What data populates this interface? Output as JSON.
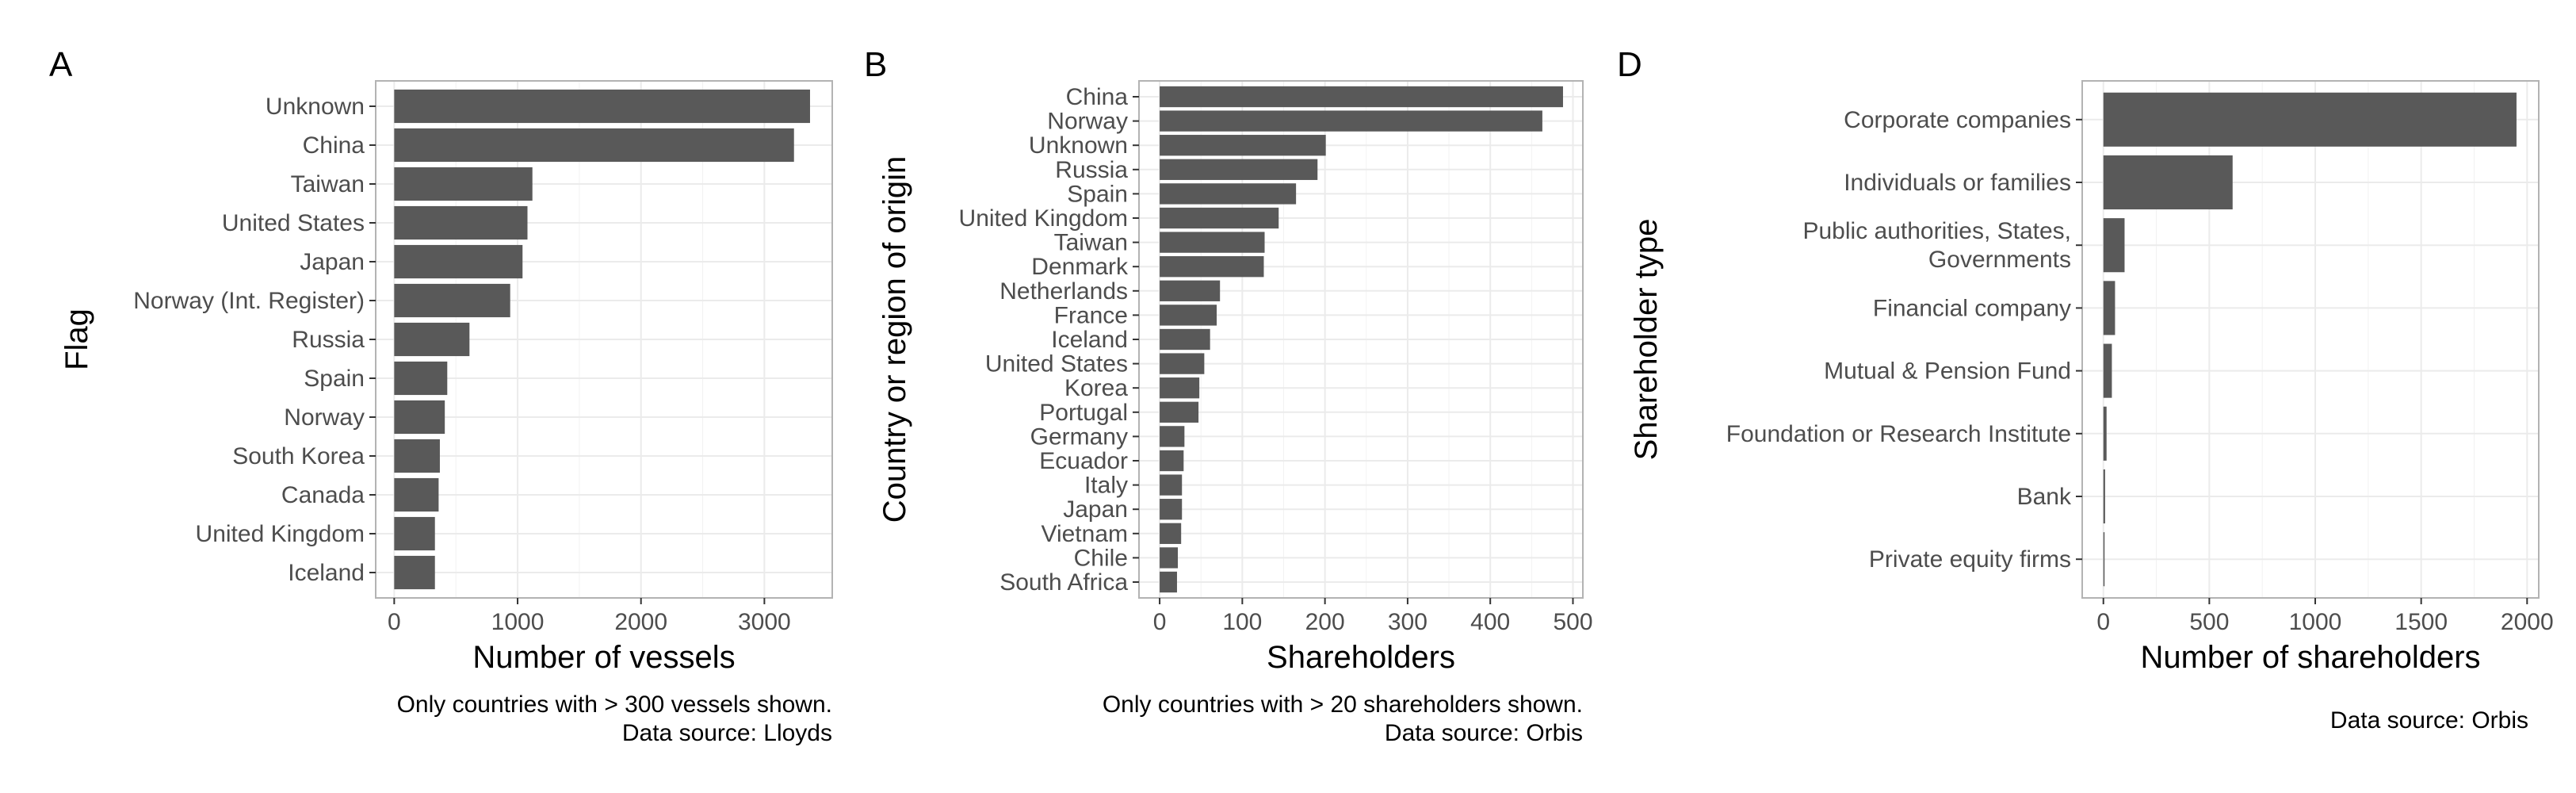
{
  "colors": {
    "bar": "#595959",
    "panel_border": "#b3b3b3",
    "grid": "#ebebeb",
    "text": "#4d4d4d"
  },
  "chart_data": [
    {
      "id": "A",
      "panel_letter": "A",
      "type": "bar",
      "orientation": "horizontal",
      "categories": [
        "Unknown",
        "China",
        "Taiwan",
        "United States",
        "Japan",
        "Norway (Int. Register)",
        "Russia",
        "Spain",
        "Norway",
        "South Korea",
        "Canada",
        "United Kingdom",
        "Iceland"
      ],
      "values": [
        3370,
        3240,
        1120,
        1080,
        1040,
        940,
        610,
        430,
        410,
        370,
        360,
        330,
        330
      ],
      "xlabel": "Number of vessels",
      "ylabel": "Flag",
      "xlim": [
        -150,
        3550
      ],
      "xticks": [
        0,
        1000,
        2000,
        3000
      ],
      "xtick_labels": [
        "0",
        "1000",
        "2000",
        "3000"
      ],
      "grid": true,
      "caption": [
        "Only countries with > 300 vessels shown.",
        "Data source: Lloyds"
      ]
    },
    {
      "id": "B",
      "panel_letter": "B",
      "type": "bar",
      "orientation": "horizontal",
      "categories": [
        "China",
        "Norway",
        "Unknown",
        "Russia",
        "Spain",
        "United Kingdom",
        "Taiwan",
        "Denmark",
        "Netherlands",
        "France",
        "Iceland",
        "United States",
        "Korea",
        "Portugal",
        "Germany",
        "Ecuador",
        "Italy",
        "Japan",
        "Vietnam",
        "Chile",
        "South Africa"
      ],
      "values": [
        488,
        463,
        201,
        191,
        165,
        144,
        127,
        126,
        73,
        69,
        61,
        54,
        48,
        47,
        30,
        29,
        27,
        27,
        26,
        22,
        21
      ],
      "xlabel": "Shareholders",
      "ylabel": "Country or region of origin",
      "xlim": [
        -25,
        512
      ],
      "xticks": [
        0,
        100,
        200,
        300,
        400,
        500
      ],
      "xtick_labels": [
        "0",
        "100",
        "200",
        "300",
        "400",
        "500"
      ],
      "grid": true,
      "caption": [
        "Only countries with > 20 shareholders shown.",
        "Data source: Orbis"
      ]
    },
    {
      "id": "D",
      "panel_letter": "D",
      "type": "bar",
      "orientation": "horizontal",
      "categories": [
        "Corporate companies",
        "Individuals or families",
        [
          "Public authorities, States,",
          "Governments"
        ],
        "Financial company",
        "Mutual & Pension Fund",
        "Foundation or Research Institute",
        "Bank",
        "Private equity firms"
      ],
      "values": [
        1950,
        610,
        100,
        55,
        40,
        15,
        8,
        2
      ],
      "xlabel": "Number of shareholders",
      "ylabel": "Shareholder type",
      "xlim": [
        -100,
        2055
      ],
      "xticks": [
        0,
        500,
        1000,
        1500,
        2000
      ],
      "xtick_labels": [
        "0",
        "500",
        "1000",
        "1500",
        "2000"
      ],
      "grid": true,
      "caption": [
        "Data source: Orbis"
      ]
    }
  ]
}
